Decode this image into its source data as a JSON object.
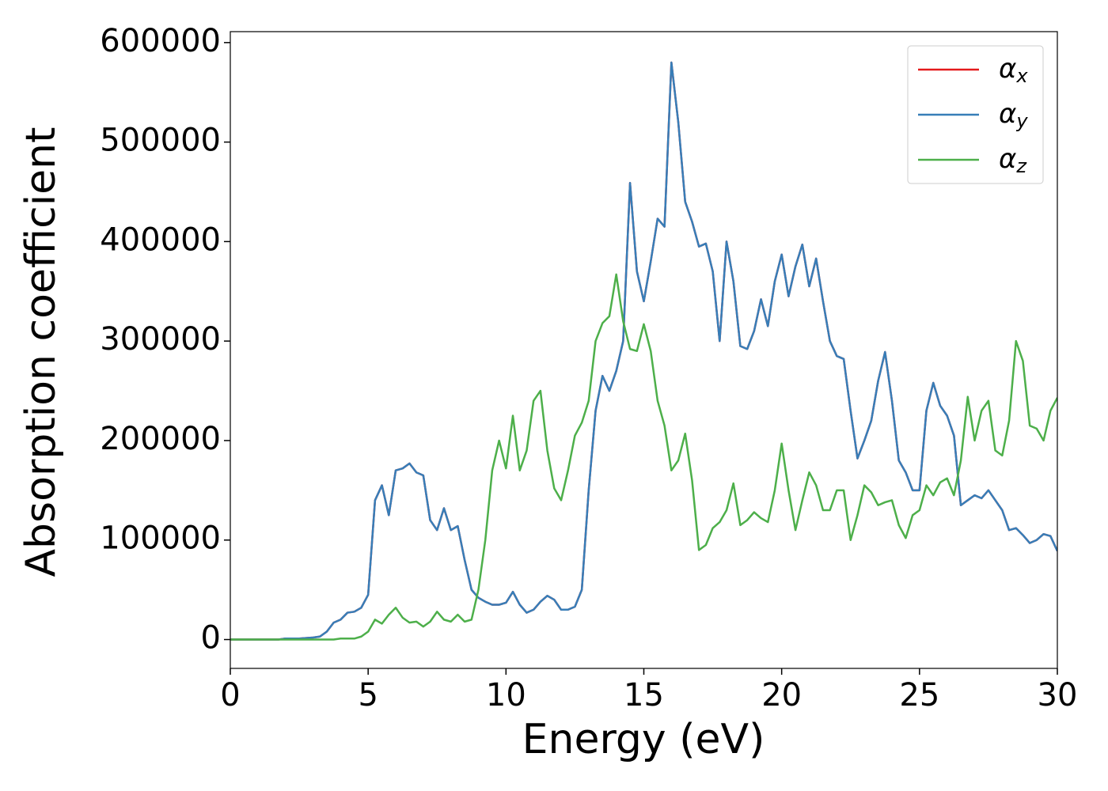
{
  "chart_data": {
    "type": "line",
    "xlabel": "Energy (eV)",
    "ylabel": "Absorption coefficient",
    "xlim": [
      0,
      30
    ],
    "ylim": [
      -29000,
      611000
    ],
    "xticks": [
      0,
      5,
      10,
      15,
      20,
      25,
      30
    ],
    "yticks": [
      0,
      100000,
      200000,
      300000,
      400000,
      500000,
      600000
    ],
    "legend": "upper right",
    "grid": false,
    "x": [
      0,
      0.25,
      0.5,
      0.75,
      1,
      1.25,
      1.5,
      1.75,
      2,
      2.25,
      2.5,
      2.75,
      3,
      3.25,
      3.5,
      3.75,
      4,
      4.25,
      4.5,
      4.75,
      5,
      5.25,
      5.5,
      5.75,
      6,
      6.25,
      6.5,
      6.75,
      7,
      7.25,
      7.5,
      7.75,
      8,
      8.25,
      8.5,
      8.75,
      9,
      9.25,
      9.5,
      9.75,
      10,
      10.25,
      10.5,
      10.75,
      11,
      11.25,
      11.5,
      11.75,
      12,
      12.25,
      12.5,
      12.75,
      13,
      13.25,
      13.5,
      13.75,
      14,
      14.25,
      14.5,
      14.75,
      15,
      15.25,
      15.5,
      15.75,
      16,
      16.25,
      16.5,
      16.75,
      17,
      17.25,
      17.5,
      17.75,
      18,
      18.25,
      18.5,
      18.75,
      19,
      19.25,
      19.5,
      19.75,
      20,
      20.25,
      20.5,
      20.75,
      21,
      21.25,
      21.5,
      21.75,
      22,
      22.25,
      22.5,
      22.75,
      23,
      23.25,
      23.5,
      23.75,
      24,
      24.25,
      24.5,
      24.75,
      25,
      25.25,
      25.5,
      25.75,
      26,
      26.25,
      26.5,
      26.75,
      27,
      27.25,
      27.5,
      27.75,
      28,
      28.25,
      28.5,
      28.75,
      29,
      29.25,
      29.5,
      29.75,
      30
    ],
    "series": [
      {
        "name": "αx",
        "color": "#e41a1c",
        "values": [
          0,
          0,
          0,
          0,
          0,
          0,
          0,
          0,
          1000,
          1000,
          1000,
          1500,
          2000,
          3000,
          8000,
          17000,
          20000,
          27000,
          28000,
          32000,
          45000,
          140000,
          155000,
          125000,
          170000,
          172000,
          177000,
          168000,
          165000,
          120000,
          110000,
          132000,
          110000,
          114000,
          80000,
          50000,
          42000,
          38000,
          35000,
          35000,
          37000,
          48000,
          35000,
          27000,
          30000,
          38000,
          44000,
          40000,
          30000,
          30000,
          33000,
          50000,
          150000,
          230000,
          265000,
          250000,
          270000,
          300000,
          459000,
          370000,
          340000,
          380000,
          423000,
          415000,
          580000,
          520000,
          440000,
          420000,
          395000,
          398000,
          370000,
          300000,
          400000,
          360000,
          295000,
          292000,
          310000,
          342000,
          315000,
          360000,
          387000,
          345000,
          375000,
          397000,
          355000,
          383000,
          340000,
          300000,
          285000,
          282000,
          230000,
          182000,
          200000,
          220000,
          260000,
          289000,
          240000,
          180000,
          168000,
          150000,
          150000,
          230000,
          258000,
          235000,
          225000,
          205000,
          135000,
          140000,
          145000,
          142000,
          150000,
          140000,
          130000,
          110000,
          112000,
          105000,
          97000,
          100000,
          106000,
          104000,
          89000
        ]
      },
      {
        "name": "αy",
        "color": "#377eb8",
        "values": [
          0,
          0,
          0,
          0,
          0,
          0,
          0,
          0,
          1000,
          1000,
          1000,
          1500,
          2000,
          3000,
          8000,
          17000,
          20000,
          27000,
          28000,
          32000,
          45000,
          140000,
          155000,
          125000,
          170000,
          172000,
          177000,
          168000,
          165000,
          120000,
          110000,
          132000,
          110000,
          114000,
          80000,
          50000,
          42000,
          38000,
          35000,
          35000,
          37000,
          48000,
          35000,
          27000,
          30000,
          38000,
          44000,
          40000,
          30000,
          30000,
          33000,
          50000,
          150000,
          230000,
          265000,
          250000,
          270000,
          300000,
          459000,
          370000,
          340000,
          380000,
          423000,
          415000,
          580000,
          520000,
          440000,
          420000,
          395000,
          398000,
          370000,
          300000,
          400000,
          360000,
          295000,
          292000,
          310000,
          342000,
          315000,
          360000,
          387000,
          345000,
          375000,
          397000,
          355000,
          383000,
          340000,
          300000,
          285000,
          282000,
          230000,
          182000,
          200000,
          220000,
          260000,
          289000,
          240000,
          180000,
          168000,
          150000,
          150000,
          230000,
          258000,
          235000,
          225000,
          205000,
          135000,
          140000,
          145000,
          142000,
          150000,
          140000,
          130000,
          110000,
          112000,
          105000,
          97000,
          100000,
          106000,
          104000,
          89000
        ]
      },
      {
        "name": "αz",
        "color": "#4daf4a",
        "values": [
          0,
          0,
          0,
          0,
          0,
          0,
          0,
          0,
          0,
          0,
          0,
          0,
          0,
          0,
          0,
          0,
          1000,
          1000,
          1000,
          3000,
          8000,
          20000,
          16000,
          25000,
          32000,
          22000,
          17000,
          18000,
          13000,
          18000,
          28000,
          20000,
          18000,
          25000,
          18000,
          20000,
          50000,
          100000,
          170000,
          200000,
          172000,
          225000,
          170000,
          190000,
          240000,
          250000,
          190000,
          152000,
          140000,
          170000,
          205000,
          218000,
          240000,
          300000,
          318000,
          325000,
          367000,
          320000,
          292000,
          290000,
          317000,
          290000,
          240000,
          215000,
          170000,
          180000,
          207000,
          160000,
          90000,
          95000,
          112000,
          118000,
          130000,
          157000,
          115000,
          120000,
          128000,
          122000,
          118000,
          150000,
          197000,
          150000,
          110000,
          140000,
          168000,
          155000,
          130000,
          130000,
          150000,
          150000,
          100000,
          125000,
          155000,
          148000,
          135000,
          138000,
          140000,
          115000,
          102000,
          125000,
          130000,
          155000,
          145000,
          158000,
          162000,
          145000,
          180000,
          244000,
          200000,
          230000,
          240000,
          190000,
          185000,
          220000,
          300000,
          280000,
          215000,
          212000,
          200000,
          230000,
          243000
        ]
      }
    ]
  }
}
